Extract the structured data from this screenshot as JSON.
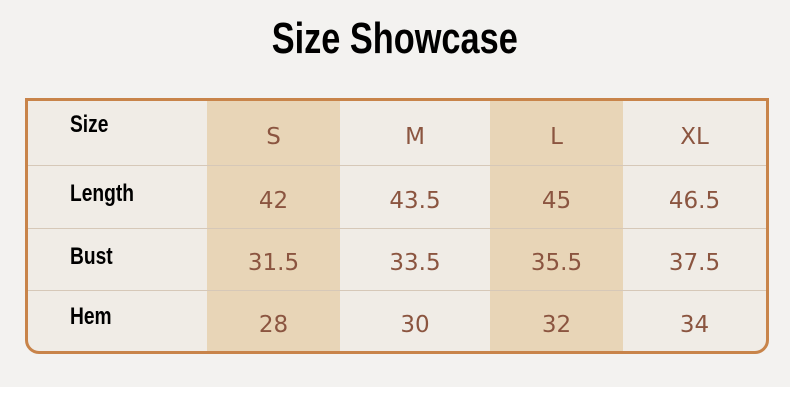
{
  "title": "Size Showcase",
  "colors": {
    "border": "#c8844a",
    "highlight": "#e8d5b7",
    "value_text": "#8b5540",
    "cell_bg": "#f0ece6"
  },
  "table": {
    "header": {
      "label": "Size",
      "sizes": [
        "S",
        "M",
        "L",
        "XL"
      ]
    },
    "rows": [
      {
        "label": "Length",
        "values": [
          "42",
          "43.5",
          "45",
          "46.5"
        ]
      },
      {
        "label": "Bust",
        "values": [
          "31.5",
          "33.5",
          "35.5",
          "37.5"
        ]
      },
      {
        "label": "Hem",
        "values": [
          "28",
          "30",
          "32",
          "34"
        ]
      }
    ]
  }
}
